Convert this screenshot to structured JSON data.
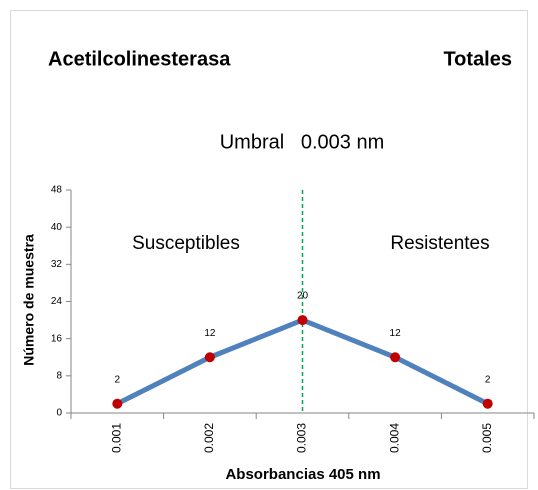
{
  "chart_data": {
    "type": "line",
    "title": "Acetilcolinesterasa",
    "subtitle": "Totales",
    "annotation": "Umbral   0.003 nm",
    "threshold": "0.003",
    "regions": [
      "Susceptibles",
      "Resistentes"
    ],
    "x_label": "Absorbancias 405 nm",
    "y_label": "Número de muestra",
    "categories": [
      "0.001",
      "0.002",
      "0.003",
      "0.004",
      "0.005"
    ],
    "series": [
      {
        "name": "Número de muestra",
        "color": "#4f81bd",
        "marker_color": "#c00000",
        "values": [
          2,
          12,
          20,
          12,
          2
        ]
      }
    ],
    "threshold_color": "#00a650",
    "ylim": [
      0,
      48
    ],
    "yticks": [
      0,
      8,
      16,
      24,
      32,
      40,
      48
    ]
  }
}
